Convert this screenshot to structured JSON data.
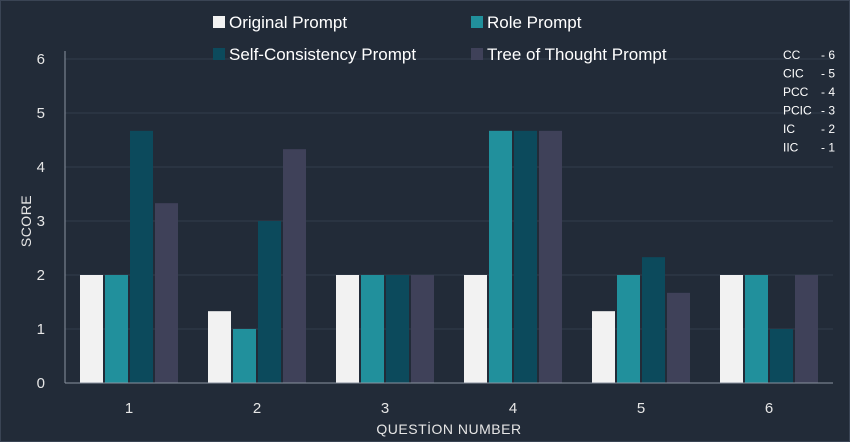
{
  "chart_data": {
    "type": "bar",
    "title": "",
    "xlabel": "QUESTİON NUMBER",
    "ylabel": "SCORE",
    "ylim": [
      0,
      6
    ],
    "yticks": [
      "0",
      "1",
      "2",
      "3",
      "4",
      "5",
      "6"
    ],
    "categories": [
      "1",
      "2",
      "3",
      "4",
      "5",
      "6"
    ],
    "legend_position": "top",
    "series": [
      {
        "name": "Original Prompt",
        "color": "#f2f2f2",
        "values": [
          2,
          1.33,
          2,
          2,
          1.33,
          2
        ]
      },
      {
        "name": "Role Prompt",
        "color": "#21909c",
        "values": [
          2,
          1,
          2,
          4.67,
          2,
          2
        ]
      },
      {
        "name": "Self-Consistency Prompt",
        "color": "#0c4a5c",
        "values": [
          4.67,
          3,
          2,
          4.67,
          2.33,
          1
        ]
      },
      {
        "name": "Tree of Thought Prompt",
        "color": "#3f4159",
        "values": [
          3.33,
          4.33,
          2,
          4.67,
          1.67,
          2
        ]
      }
    ],
    "score_key": [
      {
        "code": "CC",
        "value": "- 6"
      },
      {
        "code": "CIC",
        "value": "- 5"
      },
      {
        "code": "PCC",
        "value": "- 4"
      },
      {
        "code": "PCIC",
        "value": "- 3"
      },
      {
        "code": "IC",
        "value": "- 2"
      },
      {
        "code": "IIC",
        "value": "- 1"
      }
    ]
  },
  "colors": {
    "background": "#222b38",
    "grid": "#313c4b",
    "axis": "#8a93a0"
  }
}
